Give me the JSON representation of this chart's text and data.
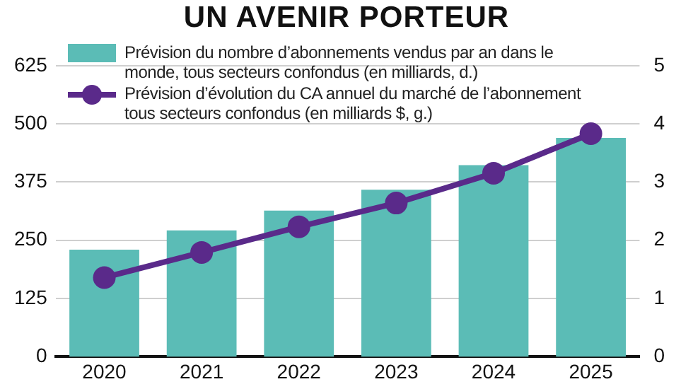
{
  "chart_data": {
    "type": "bar",
    "title": "UN AVENIR PORTEUR",
    "categories": [
      "2020",
      "2021",
      "2022",
      "2023",
      "2024",
      "2025"
    ],
    "series": [
      {
        "name": "Prévision du nombre d’abonnements vendus par an dans le monde, tous secteurs confondus (en milliards, d.)",
        "color": "#5bbcb6",
        "type": "bar",
        "axis": "y2",
        "values": [
          1.84,
          2.17,
          2.51,
          2.87,
          3.29,
          3.76
        ]
      },
      {
        "name": "Prévision d’évolution du CA annuel du marché de l’abonnement tous secteurs confondus (en milliards $, g.)",
        "color": "#5a2a8a",
        "type": "line",
        "axis": "y",
        "values": [
          170,
          224,
          279,
          330,
          394,
          479
        ]
      }
    ],
    "ylim": [
      0,
      625
    ],
    "yticks": [
      0,
      125,
      250,
      375,
      500,
      625
    ],
    "y2lim": [
      0,
      5
    ],
    "y2ticks": [
      0,
      1,
      2,
      3,
      4,
      5
    ],
    "grid": "y",
    "legend": "top",
    "marker": "circle",
    "line_style": "solid"
  }
}
